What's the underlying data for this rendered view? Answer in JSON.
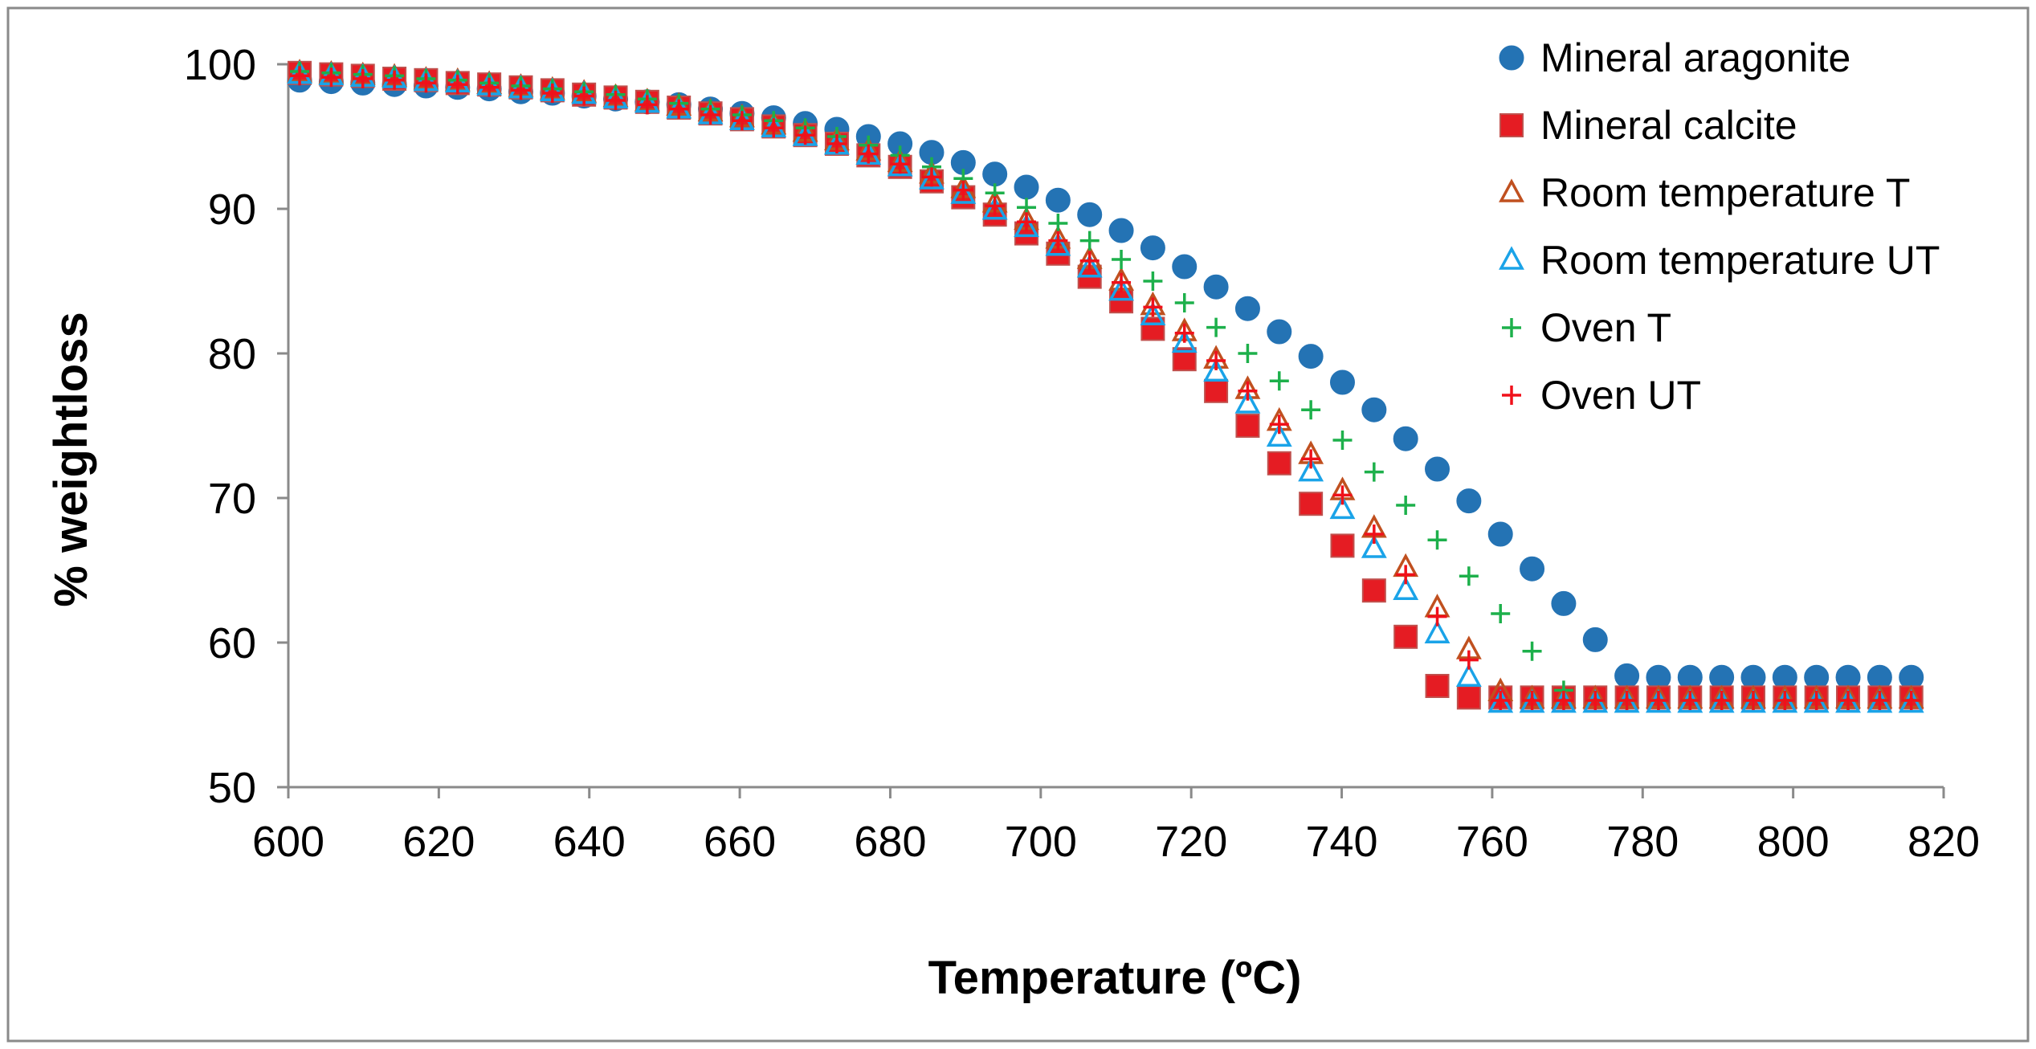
{
  "chart_data": {
    "type": "scatter",
    "title": "",
    "xlabel": "Temperature (ºC)",
    "ylabel": "% weightloss",
    "xlim": [
      600,
      820
    ],
    "ylim": [
      50,
      100
    ],
    "xticks": [
      600,
      620,
      640,
      660,
      680,
      700,
      720,
      740,
      760,
      780,
      800,
      820
    ],
    "yticks": [
      50,
      60,
      70,
      80,
      90,
      100
    ],
    "xtick_labels": [
      "600",
      "620",
      "640",
      "660",
      "680",
      "700",
      "720",
      "740",
      "760",
      "780",
      "800",
      "820"
    ],
    "ytick_labels": [
      "50",
      "60",
      "70",
      "80",
      "90",
      "100"
    ],
    "grid": false,
    "legend_position": "top-right",
    "x": [
      601.5,
      605.7,
      609.9,
      614.1,
      618.3,
      622.5,
      626.7,
      630.9,
      635.1,
      639.3,
      643.5,
      647.7,
      651.9,
      656.1,
      660.3,
      664.5,
      668.7,
      672.9,
      677.1,
      681.3,
      685.5,
      689.7,
      693.9,
      698.1,
      702.3,
      706.5,
      710.7,
      714.9,
      719.1,
      723.3,
      727.5,
      731.7,
      735.9,
      740.1,
      744.3,
      748.5,
      752.7,
      756.9,
      761.1,
      765.3,
      769.5,
      773.7,
      777.9,
      782.1,
      786.3,
      790.5,
      794.7,
      798.9,
      803.1,
      807.3,
      811.5,
      815.7
    ],
    "series": [
      {
        "name": "Mineral aragonite",
        "marker": "circle",
        "color": "#2473B4",
        "values": [
          98.9,
          98.8,
          98.7,
          98.6,
          98.5,
          98.4,
          98.3,
          98.1,
          98.0,
          97.8,
          97.6,
          97.4,
          97.2,
          96.9,
          96.6,
          96.3,
          95.9,
          95.5,
          95.0,
          94.5,
          93.9,
          93.2,
          92.4,
          91.5,
          90.6,
          89.6,
          88.5,
          87.3,
          86.0,
          84.6,
          83.1,
          81.5,
          79.8,
          78.0,
          76.1,
          74.1,
          72.0,
          69.8,
          67.5,
          65.1,
          62.7,
          60.2,
          57.7,
          57.6,
          57.6,
          57.6,
          57.6,
          57.6,
          57.6,
          57.6,
          57.6,
          57.6
        ]
      },
      {
        "name": "Mineral calcite",
        "marker": "square",
        "color": "#E51C23",
        "values": [
          99.4,
          99.3,
          99.2,
          99.0,
          98.9,
          98.7,
          98.6,
          98.4,
          98.2,
          97.9,
          97.7,
          97.4,
          97.0,
          96.6,
          96.2,
          95.7,
          95.1,
          94.5,
          93.7,
          92.9,
          91.9,
          90.8,
          89.6,
          88.3,
          86.9,
          85.3,
          83.6,
          81.7,
          79.6,
          77.4,
          75.0,
          72.4,
          69.6,
          66.7,
          63.6,
          60.4,
          57.0,
          56.2,
          56.2,
          56.2,
          56.2,
          56.2,
          56.2,
          56.2,
          56.2,
          56.2,
          56.2,
          56.2,
          56.2,
          56.2,
          56.2,
          56.2
        ]
      },
      {
        "name": "Room temperature T",
        "marker": "triangle",
        "color": "#C0501F",
        "values": [
          99.4,
          99.3,
          99.2,
          99.1,
          98.9,
          98.8,
          98.6,
          98.4,
          98.2,
          98.0,
          97.7,
          97.4,
          97.1,
          96.7,
          96.3,
          95.8,
          95.3,
          94.7,
          94.0,
          93.2,
          92.4,
          91.4,
          90.4,
          89.2,
          87.9,
          86.5,
          85.0,
          83.3,
          81.5,
          79.6,
          77.5,
          75.3,
          73.0,
          70.5,
          67.9,
          65.2,
          62.4,
          59.5,
          56.6,
          56.1,
          56.1,
          56.1,
          56.1,
          56.1,
          56.1,
          56.1,
          56.1,
          56.1,
          56.1,
          56.1,
          56.1,
          56.1
        ]
      },
      {
        "name": "Room temperature UT",
        "marker": "triangle",
        "color": "#1AA3E8",
        "values": [
          99.3,
          99.2,
          99.1,
          99.0,
          98.8,
          98.7,
          98.5,
          98.3,
          98.1,
          97.9,
          97.6,
          97.3,
          96.9,
          96.5,
          96.1,
          95.6,
          95.0,
          94.4,
          93.7,
          92.9,
          92.0,
          91.0,
          89.9,
          88.7,
          87.4,
          85.9,
          84.3,
          82.6,
          80.7,
          78.7,
          76.5,
          74.2,
          71.8,
          69.2,
          66.5,
          63.6,
          60.6,
          57.6,
          55.8,
          55.8,
          55.8,
          55.8,
          55.8,
          55.8,
          55.8,
          55.8,
          55.8,
          55.8,
          55.8,
          55.8,
          55.8,
          55.8
        ]
      },
      {
        "name": "Oven T",
        "marker": "plus",
        "color": "#1DB04B",
        "values": [
          99.5,
          99.4,
          99.3,
          99.2,
          99.0,
          98.9,
          98.7,
          98.5,
          98.3,
          98.1,
          97.9,
          97.6,
          97.3,
          96.9,
          96.5,
          96.1,
          95.6,
          95.0,
          94.4,
          93.7,
          92.9,
          92.1,
          91.1,
          90.1,
          89.0,
          87.8,
          86.5,
          85.0,
          83.5,
          81.8,
          80.0,
          78.1,
          76.1,
          74.0,
          71.8,
          69.5,
          67.1,
          64.6,
          62.0,
          59.4,
          56.7,
          56.0,
          56.0,
          56.0,
          56.0,
          56.0,
          56.0,
          56.0,
          56.0,
          56.0,
          56.0,
          56.0
        ]
      },
      {
        "name": "Oven UT",
        "marker": "plus",
        "color": "#F0101A",
        "values": [
          99.2,
          99.1,
          99.0,
          98.9,
          98.7,
          98.6,
          98.4,
          98.2,
          98.0,
          97.8,
          97.5,
          97.2,
          96.9,
          96.5,
          96.1,
          95.6,
          95.1,
          94.5,
          93.8,
          93.1,
          92.2,
          91.3,
          90.2,
          89.1,
          87.8,
          86.4,
          84.9,
          83.2,
          81.4,
          79.5,
          77.4,
          75.1,
          72.7,
          70.2,
          67.5,
          64.7,
          61.8,
          58.8,
          56.0,
          56.0,
          56.0,
          56.0,
          56.0,
          56.0,
          56.0,
          56.0,
          56.0,
          56.0,
          56.0,
          56.0,
          56.0,
          56.0
        ]
      }
    ]
  }
}
